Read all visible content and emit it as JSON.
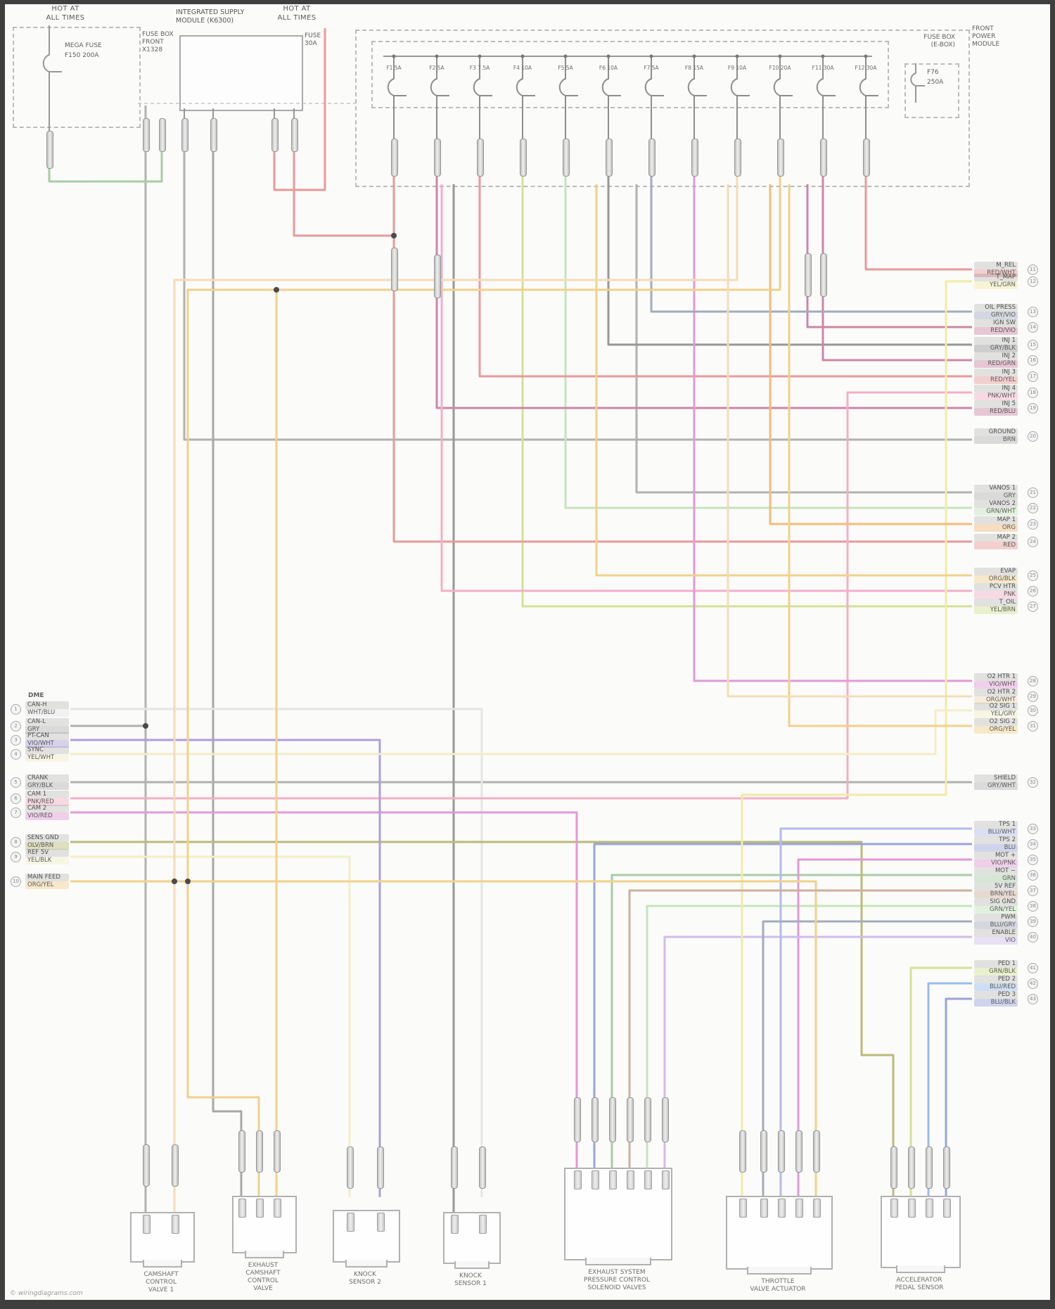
{
  "palette": {
    "red": "#e88f8f",
    "maroon": "#c77b9b",
    "pink": "#f2a7c3",
    "magenta": "#df8fd3",
    "violet": "#a694d6",
    "lavender": "#cbb8e8",
    "blue": "#8f9bd8",
    "ltblue": "#aab6e8",
    "sky": "#8fb7e8",
    "bluegray": "#9aa3b8",
    "gray": "#a9a9a9",
    "dkgray": "#8d8d8d",
    "white": "#e3e3e3",
    "green": "#9fc99f",
    "ltgreen": "#bfe3b4",
    "yellowgreen": "#cfe08a",
    "olive": "#b5b36a",
    "yellow": "#f1ea9e",
    "paleyellow": "#f3edc0",
    "orange": "#f3b56e",
    "gold": "#f0cd7e",
    "cream": "#f3d9b0",
    "brown": "#c9a894"
  },
  "top_left": {
    "hot": [
      "HOT AT",
      "ALL TIMES"
    ],
    "fuse": [
      "MEGA FUSE",
      "F150 200A"
    ],
    "side": [
      "FUSE BOX",
      "FRONT",
      "X1328"
    ]
  },
  "supply_module": {
    "title": [
      "INTEGRATED SUPPLY",
      "MODULE (K6300)"
    ],
    "side": [
      "FUSE",
      "30A"
    ]
  },
  "top_right_hot": [
    "HOT AT",
    "ALL TIMES"
  ],
  "fusebox": {
    "title": [
      "FUSE BOX",
      "(E-BOX)"
    ],
    "side": [
      "FRONT",
      "POWER",
      "MODULE"
    ],
    "internal_fuse": [
      "F76",
      "250A"
    ],
    "fuses": [
      "F1 5A",
      "F2 5A",
      "F3 7.5A",
      "F4 10A",
      "F5 5A",
      "F6 10A",
      "F7 5A",
      "F8 15A",
      "F9 10A",
      "F10 20A",
      "F11 30A",
      "F12 30A"
    ]
  },
  "left_terminals": {
    "header": "DME",
    "rows": [
      {
        "name": "CAN-H",
        "code": "WHT/BLU",
        "pin": "1",
        "color": "#e3e3e3"
      },
      {
        "name": "CAN-L",
        "code": "GRY",
        "pin": "2",
        "color": "#a9a9a9"
      },
      {
        "name": "PT-CAN",
        "code": "VIO/WHT",
        "pin": "3",
        "color": "#a694d6"
      },
      {
        "name": "SYNC",
        "code": "YEL/WHT",
        "pin": "4",
        "color": "#f3edc0"
      },
      {
        "name": "CRANK",
        "code": "GRY/BLK",
        "pin": "5",
        "color": "#a9a9a9"
      },
      {
        "name": "CAM 1",
        "code": "PNK/RED",
        "pin": "6",
        "color": "#f2a7c3"
      },
      {
        "name": "CAM 2",
        "code": "VIO/RED",
        "pin": "7",
        "color": "#df8fd3"
      },
      {
        "name": "SENS GND",
        "code": "OLV/BRN",
        "pin": "8",
        "color": "#b5b36a"
      },
      {
        "name": "REF 5V",
        "code": "YEL/BLK",
        "pin": "9",
        "color": "#f3edc0"
      },
      {
        "name": "MAIN FEED",
        "code": "ORG/YEL",
        "pin": "10",
        "color": "#f0cd7e"
      }
    ]
  },
  "right_terminals": {
    "rows": [
      {
        "name": "M_REL",
        "code": "RED/WHT",
        "pin": "11",
        "color": "#e88f8f"
      },
      {
        "name": "T_MAP",
        "code": "YEL/GRN",
        "pin": "12",
        "color": "#f1ea9e"
      },
      {
        "name": "OIL PRESS",
        "code": "GRY/VIO",
        "pin": "13",
        "color": "#9aa3b8"
      },
      {
        "name": "IGN SW",
        "code": "RED/VIO",
        "pin": "14",
        "color": "#c77b9b"
      },
      {
        "name": "INJ 1",
        "code": "GRY/BLK",
        "pin": "15",
        "color": "#8d8d8d"
      },
      {
        "name": "INJ 2",
        "code": "RED/GRN",
        "pin": "16",
        "color": "#c77b9b"
      },
      {
        "name": "INJ 3",
        "code": "RED/YEL",
        "pin": "17",
        "color": "#e88f8f"
      },
      {
        "name": "INJ 4",
        "code": "PNK/WHT",
        "pin": "18",
        "color": "#f2a7c3"
      },
      {
        "name": "INJ 5",
        "code": "RED/BLU",
        "pin": "19",
        "color": "#c77b9b"
      },
      {
        "name": "GROUND",
        "code": "BRN",
        "pin": "20",
        "color": "#a9a9a9"
      },
      {
        "name": "VANOS 1",
        "code": "GRY",
        "pin": "21",
        "color": "#a9a9a9"
      },
      {
        "name": "VANOS 2",
        "code": "GRN/WHT",
        "pin": "22",
        "color": "#bfe3b4"
      },
      {
        "name": "MAP 1",
        "code": "ORG",
        "pin": "23",
        "color": "#f3b56e"
      },
      {
        "name": "MAP 2",
        "code": "RED",
        "pin": "24",
        "color": "#e88f8f"
      },
      {
        "name": "EVAP",
        "code": "ORG/BLK",
        "pin": "25",
        "color": "#f0cd7e"
      },
      {
        "name": "PCV HTR",
        "code": "PNK",
        "pin": "26",
        "color": "#f2a7c3"
      },
      {
        "name": "T_OIL",
        "code": "YEL/BRN",
        "pin": "27",
        "color": "#cfe08a"
      },
      {
        "name": "O2 HTR 1",
        "code": "VIO/WHT",
        "pin": "28",
        "color": "#df8fd3"
      },
      {
        "name": "O2 HTR 2",
        "code": "ORG/WHT",
        "pin": "29",
        "color": "#f3d9b0"
      },
      {
        "name": "O2 SIG 1",
        "code": "YEL/GRY",
        "pin": "30",
        "color": "#f3edc0"
      },
      {
        "name": "O2 SIG 2",
        "code": "ORG/YEL",
        "pin": "31",
        "color": "#f0cd7e"
      },
      {
        "name": "SHIELD",
        "code": "GRY/WHT",
        "pin": "32",
        "color": "#a9a9a9"
      },
      {
        "name": "TPS 1",
        "code": "BLU/WHT",
        "pin": "33",
        "color": "#aab6e8"
      },
      {
        "name": "TPS 2",
        "code": "BLU",
        "pin": "34",
        "color": "#8f9bd8"
      },
      {
        "name": "MOT +",
        "code": "VIO/PNK",
        "pin": "35",
        "color": "#df8fd3"
      },
      {
        "name": "MOT −",
        "code": "GRN",
        "pin": "36",
        "color": "#9fc99f"
      },
      {
        "name": "5V REF",
        "code": "BRN/YEL",
        "pin": "37",
        "color": "#c9a894"
      },
      {
        "name": "SIG GND",
        "code": "GRN/YEL",
        "pin": "38",
        "color": "#bfe3b4"
      },
      {
        "name": "PWM",
        "code": "BLU/GRY",
        "pin": "39",
        "color": "#9aa3b8"
      },
      {
        "name": "ENABLE",
        "code": "VIO",
        "pin": "40",
        "color": "#cbb8e8"
      },
      {
        "name": "PED 1",
        "code": "GRN/BLK",
        "pin": "41",
        "color": "#cfe08a"
      },
      {
        "name": "PED 2",
        "code": "BLU/RED",
        "pin": "42",
        "color": "#8fb7e8"
      },
      {
        "name": "PED 3",
        "code": "BLU/BLK",
        "pin": "43",
        "color": "#8f9bd8"
      }
    ]
  },
  "components": [
    {
      "lines": [
        "CAMSHAFT",
        "CONTROL",
        "VALVE 1"
      ]
    },
    {
      "lines": [
        "EXHAUST",
        "CAMSHAFT",
        "CONTROL",
        "VALVE"
      ]
    },
    {
      "lines": [
        "KNOCK",
        "SENSOR 2"
      ]
    },
    {
      "lines": [
        "KNOCK",
        "SENSOR 1"
      ]
    },
    {
      "lines": [
        "EXHAUST SYSTEM",
        "PRESSURE CONTROL",
        "SOLENOID VALVES"
      ]
    },
    {
      "lines": [
        "THROTTLE",
        "VALVE ACTUATOR"
      ]
    },
    {
      "lines": [
        "ACCELERATOR",
        "PEDAL SENSOR"
      ]
    }
  ],
  "watermark": "© wiringdiagrams.com"
}
